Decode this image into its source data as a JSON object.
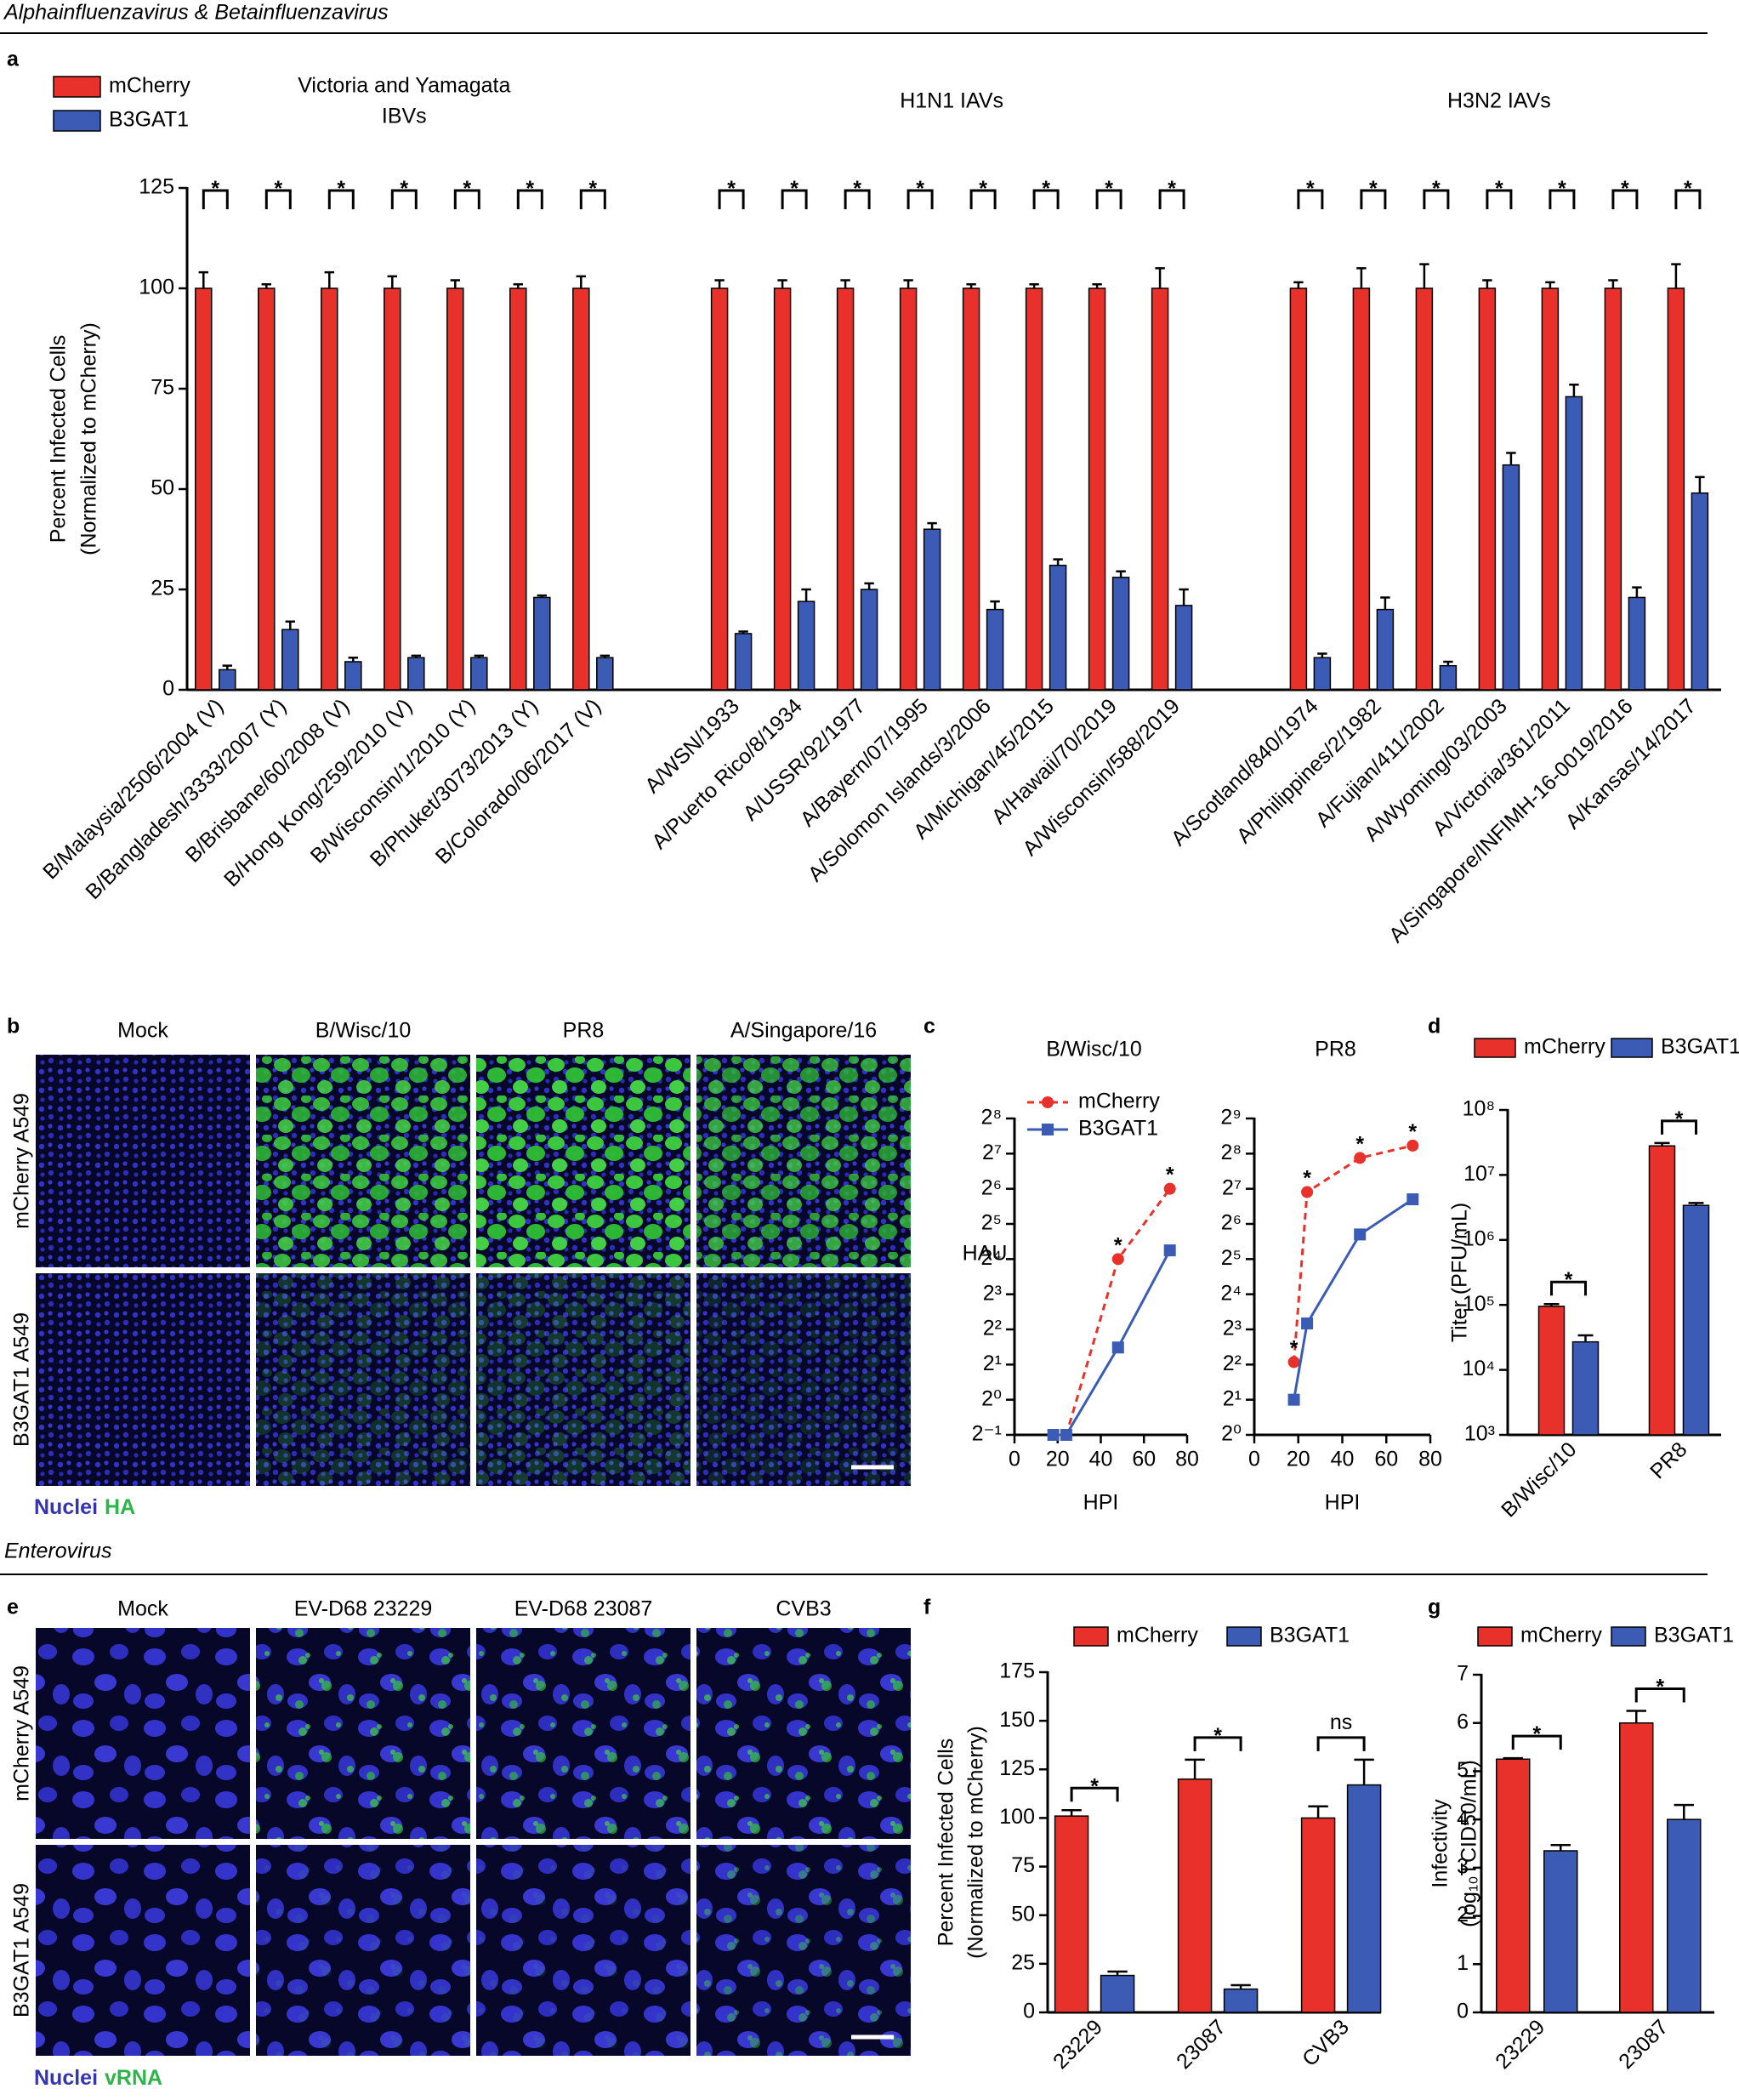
{
  "sections": [
    "Alphainfluenzavirus & Betainfluenzavirus",
    "Enterovirus"
  ],
  "panels": [
    "a",
    "b",
    "c",
    "d",
    "e",
    "f",
    "g"
  ],
  "image_grids": [
    {
      "columns": [
        "Mock",
        "B/Wisc/10",
        "PR8",
        "A/Singapore/16"
      ],
      "rows": [
        "mCherry A549",
        "B3GAT1 A549"
      ],
      "stains": [
        {
          "name": "Nuclei",
          "color": "#3535b0"
        },
        {
          "name": "HA",
          "color": "#2fb34a"
        }
      ]
    },
    {
      "columns": [
        "Mock",
        "EV-D68 23229",
        "EV-D68 23087",
        "CVB3"
      ],
      "rows": [
        "mCherry A549",
        "B3GAT1 A549"
      ],
      "stains": [
        {
          "name": "Nuclei",
          "color": "#3535b0"
        },
        {
          "name": "vRNA",
          "color": "#2fb34a"
        }
      ]
    }
  ],
  "chart_data": [
    {
      "type": "bar",
      "ylabel": [
        "Percent Infected Cells",
        "(Normalized to mCherry)"
      ],
      "group_labels": [
        [
          "Victoria and Yamagata",
          "IBVs"
        ],
        [
          "H1N1 IAVs"
        ],
        [
          "H3N2 IAVs"
        ]
      ],
      "categories": [
        [
          "B/Malaysia/2506/2004 (V)",
          "B/Bangladesh/3333/2007 (Y)",
          "B/Brisbane/60/2008 (V)",
          "B/Hong Kong/259/2010 (V)",
          "B/Wisconsin/1/2010 (Y)",
          "B/Phuket/3073/2013 (Y)",
          "B/Colorado/06/2017 (V)"
        ],
        [
          "A/WSN/1933",
          "A/Puerto Rico/8/1934",
          "A/USSR/92/1977",
          "A/Bayern/07/1995",
          "A/Solomon Islands/3/2006",
          "A/Michigan/45/2015",
          "A/Hawaii/70/2019",
          "A/Wisconsin/588/2019"
        ],
        [
          "A/Scotland/840/1974",
          "A/Philippines/2/1982",
          "A/Fujian/411/2002",
          "A/Wyoming/03/2003",
          "A/Victoria/361/2011",
          "A/Singapore/INFIMH-16-0019/2016",
          "A/Kansas/14/2017"
        ]
      ],
      "series": [
        {
          "name": "mCherry",
          "color": "#e8312a",
          "values": [
            [
              100,
              100,
              100,
              100,
              100,
              100,
              100
            ],
            [
              100,
              100,
              100,
              100,
              100,
              100,
              100,
              100
            ],
            [
              100,
              100,
              100,
              100,
              100,
              100,
              100
            ]
          ],
          "errors": [
            [
              4,
              1,
              4,
              3,
              2,
              1,
              3
            ],
            [
              2,
              2,
              2,
              2,
              1,
              1,
              1,
              5
            ],
            [
              1.5,
              5,
              6,
              2,
              1.5,
              2,
              6
            ]
          ]
        },
        {
          "name": "B3GAT1",
          "color": "#3b5bb5",
          "values": [
            [
              5,
              15,
              7,
              8,
              8,
              23,
              8
            ],
            [
              14,
              22,
              25,
              40,
              20,
              31,
              28,
              21
            ],
            [
              8,
              20,
              6,
              56,
              73,
              23,
              49
            ]
          ],
          "errors": [
            [
              1,
              2,
              1,
              0.5,
              0.5,
              0.5,
              0.5
            ],
            [
              0.5,
              3,
              1.5,
              1.5,
              2,
              1.5,
              1.5,
              4
            ],
            [
              1,
              3,
              1,
              3,
              3,
              2.5,
              4
            ]
          ]
        }
      ],
      "significance": [
        [
          "*",
          "*",
          "*",
          "*",
          "*",
          "*",
          "*"
        ],
        [
          "*",
          "*",
          "*",
          "*",
          "*",
          "*",
          "*",
          "*"
        ],
        [
          "*",
          "*",
          "*",
          "*",
          "*",
          "*",
          "*"
        ]
      ],
      "ylim": [
        0,
        125
      ],
      "yticks": [
        0,
        25,
        50,
        75,
        100,
        125
      ]
    },
    {
      "type": "line",
      "title": "B/Wisc/10",
      "xlabel": "HPI",
      "ylabel": "HAU",
      "log_scale": true,
      "x": [
        18,
        24,
        48,
        72
      ],
      "xlim": [
        0,
        80
      ],
      "xticks": [
        0,
        20,
        40,
        60,
        80
      ],
      "ylim": [
        0.5,
        256
      ],
      "yticks": [
        {
          "value": 0.5,
          "label": "2⁻¹"
        },
        {
          "value": 1,
          "label": "2⁰"
        },
        {
          "value": 2,
          "label": "2¹"
        },
        {
          "value": 4,
          "label": "2²"
        },
        {
          "value": 8,
          "label": "2³"
        },
        {
          "value": 16,
          "label": "2⁴"
        },
        {
          "value": 32,
          "label": "2⁵"
        },
        {
          "value": 64,
          "label": "2⁶"
        },
        {
          "value": 128,
          "label": "2⁷"
        },
        {
          "value": 256,
          "label": "2⁸"
        }
      ],
      "series": [
        {
          "name": "mCherry",
          "color": "#e8312a",
          "dash": true,
          "marker": "circle",
          "values": [
            0.5,
            0.5,
            16,
            64
          ]
        },
        {
          "name": "B3GAT1",
          "color": "#3b5bb5",
          "dash": false,
          "marker": "square",
          "values": [
            0.5,
            0.5,
            2.8,
            19
          ]
        }
      ],
      "significance": [
        null,
        null,
        "*",
        "*"
      ]
    },
    {
      "type": "line",
      "title": "PR8",
      "xlabel": "HPI",
      "log_scale": true,
      "x": [
        18,
        24,
        48,
        72
      ],
      "xlim": [
        0,
        80
      ],
      "xticks": [
        0,
        20,
        40,
        60,
        80
      ],
      "ylim": [
        1,
        512
      ],
      "yticks": [
        {
          "value": 1,
          "label": "2⁰"
        },
        {
          "value": 2,
          "label": "2¹"
        },
        {
          "value": 4,
          "label": "2²"
        },
        {
          "value": 8,
          "label": "2³"
        },
        {
          "value": 16,
          "label": "2⁴"
        },
        {
          "value": 32,
          "label": "2⁵"
        },
        {
          "value": 64,
          "label": "2⁶"
        },
        {
          "value": 128,
          "label": "2⁷"
        },
        {
          "value": 256,
          "label": "2⁸"
        },
        {
          "value": 512,
          "label": "2⁹"
        }
      ],
      "series": [
        {
          "color": "#e8312a",
          "dash": true,
          "marker": "circle",
          "values": [
            4.2,
            120,
            235,
            300
          ]
        },
        {
          "color": "#3b5bb5",
          "dash": false,
          "marker": "square",
          "values": [
            2,
            9,
            52,
            104
          ]
        }
      ],
      "significance": [
        "*",
        "*",
        "*",
        "*"
      ]
    },
    {
      "type": "bar",
      "ylabel": [
        "Titer (PFU/mL)"
      ],
      "log_scale": true,
      "categories": [
        "B/Wisc/10",
        "PR8"
      ],
      "series": [
        {
          "name": "mCherry",
          "color": "#e8312a",
          "values": [
            95000,
            28000000
          ],
          "errors": [
            8000,
            3000000
          ]
        },
        {
          "name": "B3GAT1",
          "color": "#3b5bb5",
          "values": [
            27000,
            3400000
          ],
          "errors": [
            7000,
            300000
          ]
        }
      ],
      "significance": [
        "*",
        "*"
      ],
      "ylim": [
        1000,
        100000000
      ],
      "yticks": [
        {
          "value": 1000,
          "label": "10³"
        },
        {
          "value": 10000,
          "label": "10⁴"
        },
        {
          "value": 100000,
          "label": "10⁵"
        },
        {
          "value": 1000000,
          "label": "10⁶"
        },
        {
          "value": 10000000,
          "label": "10⁷"
        },
        {
          "value": 100000000,
          "label": "10⁸"
        }
      ]
    },
    {
      "type": "bar",
      "ylabel": [
        "Percent Infected Cells",
        "(Normalized to mCherry)"
      ],
      "categories": [
        "23229",
        "23087",
        "CVB3"
      ],
      "series": [
        {
          "name": "mCherry",
          "color": "#e8312a",
          "values": [
            101,
            120,
            100
          ],
          "errors": [
            3,
            10,
            6
          ]
        },
        {
          "name": "B3GAT1",
          "color": "#3b5bb5",
          "values": [
            19,
            12,
            117
          ],
          "errors": [
            2,
            2,
            13
          ]
        }
      ],
      "significance": [
        "*",
        "*",
        "ns"
      ],
      "ylim": [
        0,
        175
      ],
      "yticks": [
        0,
        25,
        50,
        75,
        100,
        125,
        150,
        175
      ]
    },
    {
      "type": "bar",
      "ylabel": [
        "Infectivity",
        "(log₁₀TCID50/mL)"
      ],
      "categories": [
        "23229",
        "23087"
      ],
      "series": [
        {
          "name": "mCherry",
          "color": "#e8312a",
          "values": [
            5.25,
            6.0
          ],
          "errors": [
            0.02,
            0.25
          ]
        },
        {
          "name": "B3GAT1",
          "color": "#3b5bb5",
          "values": [
            3.35,
            4.0
          ],
          "errors": [
            0.12,
            0.3
          ]
        }
      ],
      "significance": [
        "*",
        "*"
      ],
      "ylim": [
        0,
        7
      ],
      "yticks": [
        0,
        1,
        2,
        3,
        4,
        5,
        6,
        7
      ]
    }
  ]
}
